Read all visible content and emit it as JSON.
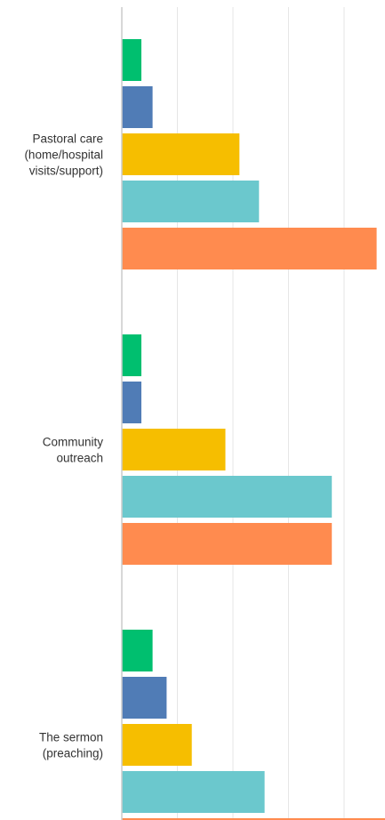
{
  "chart_data": {
    "type": "bar",
    "orientation": "horizontal",
    "categories": [
      [
        "Pastoral care",
        "(home/hospital",
        "visits/support)"
      ],
      [
        "Community",
        "outreach"
      ],
      [
        "The sermon",
        "(preaching)"
      ]
    ],
    "series": [
      {
        "color": "#00bf6f",
        "values": [
          3.5,
          3.5,
          5.5
        ]
      },
      {
        "color": "#507cb6",
        "values": [
          5.5,
          3.5,
          8.0
        ]
      },
      {
        "color": "#f6be00",
        "values": [
          21.0,
          18.5,
          12.5
        ]
      },
      {
        "color": "#6bc8cd",
        "values": [
          24.5,
          37.5,
          25.5
        ]
      },
      {
        "color": "#ff8b4f",
        "values": [
          45.5,
          37.5,
          47.0
        ]
      }
    ],
    "xlim": [
      0,
      47
    ],
    "grid": true,
    "title": "",
    "xlabel": "",
    "ylabel": ""
  }
}
